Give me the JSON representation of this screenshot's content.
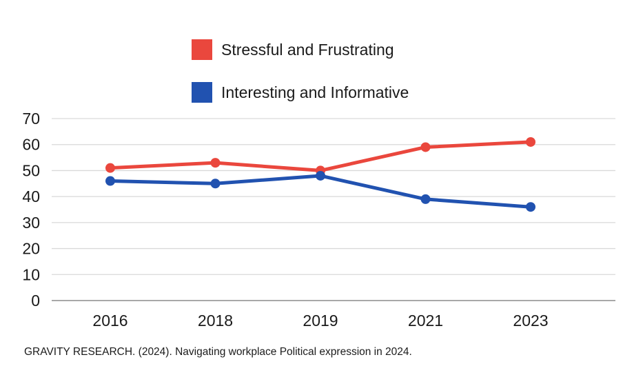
{
  "chart_data": {
    "type": "line",
    "x": [
      "2016",
      "2018",
      "2019",
      "2021",
      "2023"
    ],
    "series": [
      {
        "name": "Stressful and Frustrating",
        "color": "#EA473D",
        "values": [
          51,
          53,
          50,
          59,
          61
        ]
      },
      {
        "name": "Interesting and Informative",
        "color": "#2152B0",
        "values": [
          46,
          45,
          48,
          39,
          36
        ]
      }
    ],
    "title": "",
    "xlabel": "",
    "ylabel": "",
    "ylim": [
      0,
      70
    ],
    "yticks": [
      0,
      10,
      20,
      30,
      40,
      50,
      60,
      70
    ],
    "grid": true,
    "legend_position": "top"
  },
  "legend": {
    "items": [
      {
        "label": "Stressful and Frustrating",
        "color": "#EA473D"
      },
      {
        "label": "Interesting and Informative",
        "color": "#2152B0"
      }
    ]
  },
  "caption": "GRAVITY RESEARCH. (2024). Navigating workplace Political expression in 2024.",
  "colors": {
    "background": "#ffffff",
    "gridline": "#d9d9d9",
    "baseline": "#a8a8a8",
    "tick_text": "#1a1a1a",
    "series_red": "#EA473D",
    "series_blue": "#2152B0"
  }
}
